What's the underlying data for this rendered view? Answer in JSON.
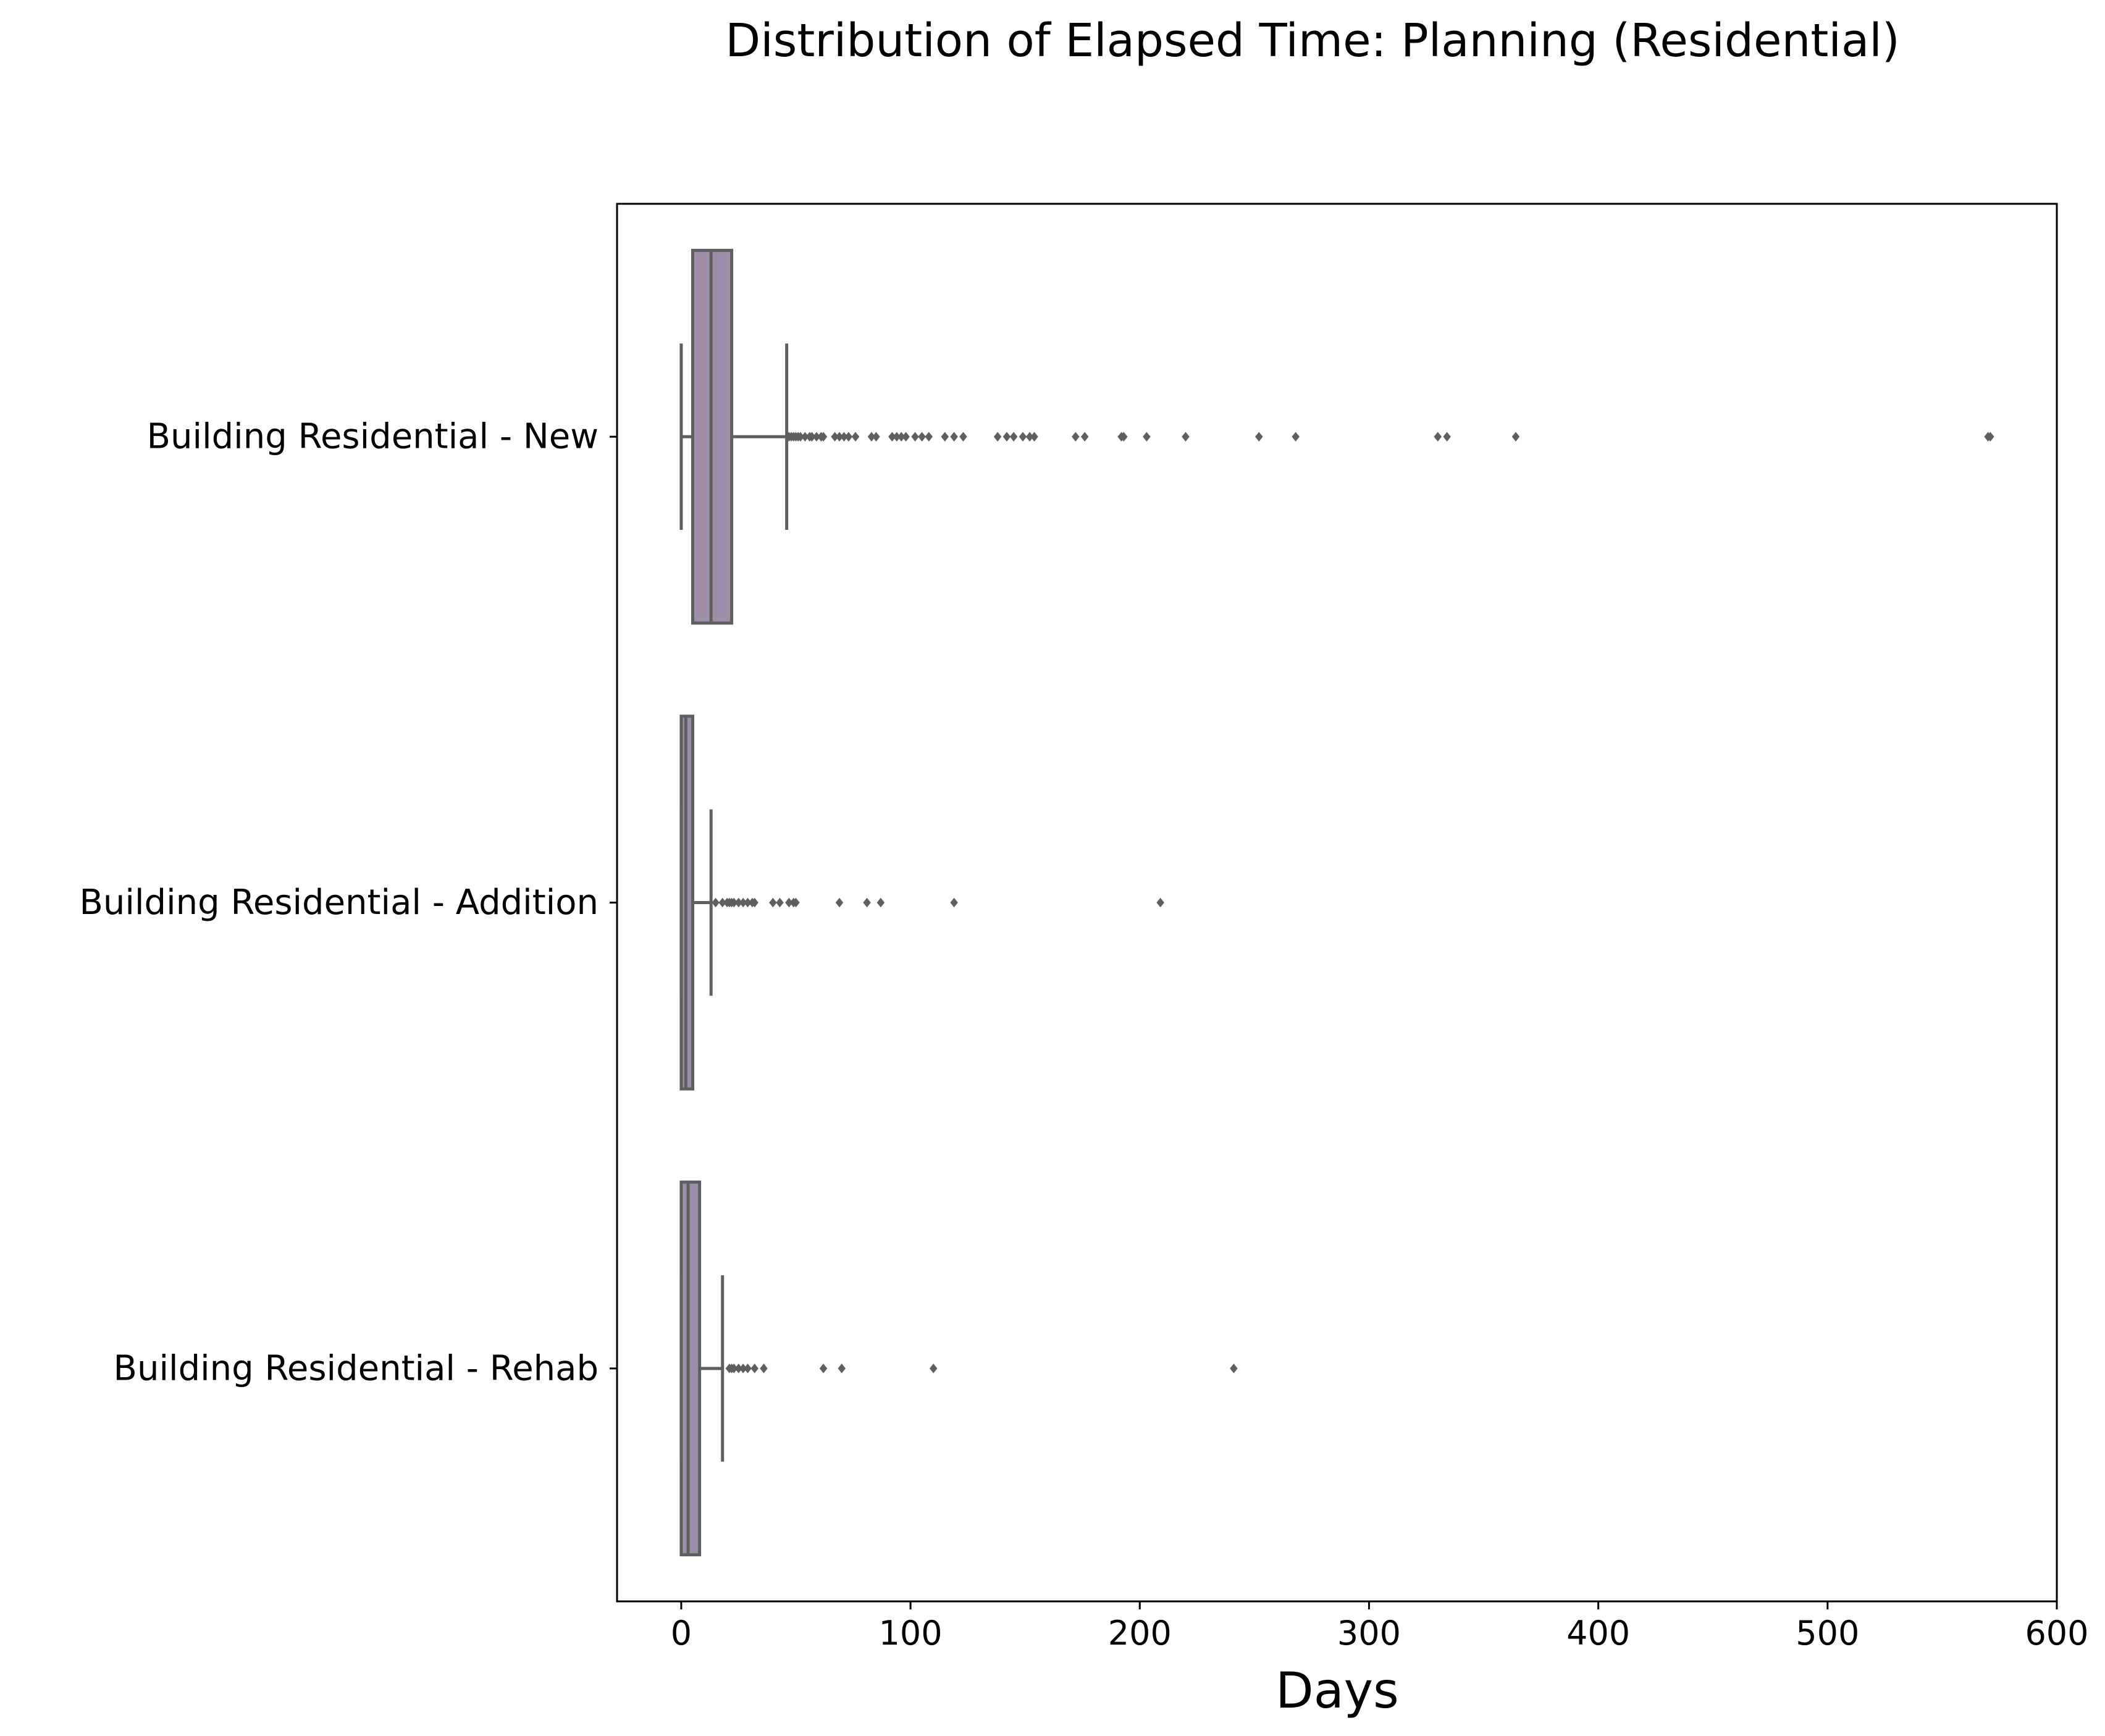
{
  "chart_data": {
    "type": "boxplot",
    "orientation": "horizontal",
    "title": "Distribution of Elapsed Time: Planning (Residential)",
    "xlabel": "Days",
    "ylabel": "",
    "xlim": [
      -28,
      600
    ],
    "xticks": [
      0,
      100,
      200,
      300,
      400,
      500,
      600
    ],
    "grid": false,
    "colors": {
      "box_fill": "#9e8fa9",
      "line": "#5f5f5f",
      "frame": "#000000"
    },
    "categories": [
      "Building Residential - New",
      "Building Residential - Addition",
      "Building Residential - Rehab"
    ],
    "boxes": [
      {
        "category": "Building Residential - New",
        "whisker_low": 0,
        "q1": 5,
        "median": 13,
        "q3": 22,
        "whisker_high": 46,
        "outliers": [
          47,
          48,
          49,
          50,
          51,
          52,
          54,
          56,
          57,
          59,
          61,
          62,
          67,
          69,
          71,
          73,
          76,
          83,
          85,
          92,
          94,
          96,
          98,
          102,
          105,
          108,
          115,
          119,
          123,
          138,
          142,
          145,
          149,
          152,
          154,
          172,
          176,
          192,
          193,
          203,
          220,
          252,
          268,
          330,
          334,
          364,
          570,
          571
        ]
      },
      {
        "category": "Building Residential - Addition",
        "whisker_low": 0,
        "q1": 0,
        "median": 2,
        "q3": 5,
        "whisker_high": 13,
        "outliers": [
          15,
          18,
          20,
          21,
          22,
          23,
          25,
          27,
          29,
          31,
          32,
          40,
          43,
          47,
          49,
          50,
          69,
          81,
          87,
          119,
          209
        ]
      },
      {
        "category": "Building Residential - Rehab",
        "whisker_low": 0,
        "q1": 0,
        "median": 3,
        "q3": 8,
        "whisker_high": 18,
        "outliers": [
          21,
          22,
          23,
          25,
          27,
          29,
          32,
          36,
          62,
          70,
          110,
          241
        ]
      }
    ]
  }
}
